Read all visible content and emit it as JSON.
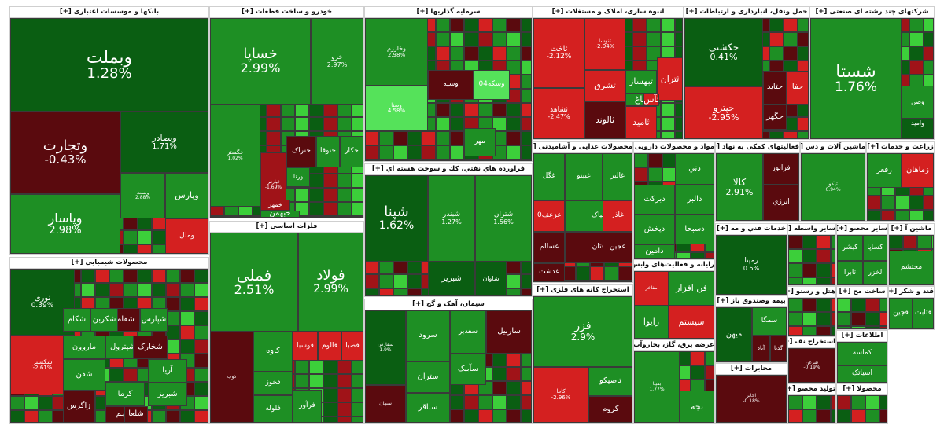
{
  "colors": {
    "deep_red": "#5a0a0e",
    "red": "#d42020",
    "mid_red": "#a01318",
    "dark_green": "#0a5e12",
    "green": "#1e8f24",
    "bright_green": "#3ccf3a",
    "light_green": "#55e25a"
  },
  "chart_data": {
    "type": "heatmap",
    "sectors": [
      {
        "title": "بانکها و موسسات اعتباری [+]",
        "stocks": [
          {
            "symbol": "وبملت",
            "change": "1.28%",
            "color": "dark_green"
          },
          {
            "symbol": "وتجارت",
            "change": "-0.43%",
            "color": "deep_red"
          },
          {
            "symbol": "وبصادر",
            "change": "1.71%",
            "color": "dark_green"
          },
          {
            "symbol": "وپاسار",
            "change": "2.98%",
            "color": "green"
          },
          {
            "symbol": "وپست",
            "change": "2.88%",
            "color": "green"
          },
          {
            "symbol": "وپارس",
            "change": "",
            "color": "green"
          },
          {
            "symbol": "وملل",
            "change": "",
            "color": "red"
          }
        ]
      },
      {
        "title": "خودرو و ساخت قطعات [+]",
        "stocks": [
          {
            "symbol": "خساپا",
            "change": "2.99%",
            "color": "green"
          },
          {
            "symbol": "خرو",
            "change": "2.97%",
            "color": "green"
          },
          {
            "symbol": "خگستر",
            "change": "1.02%",
            "color": "green"
          },
          {
            "symbol": "خپارس",
            "change": "-1.69%",
            "color": "mid_red"
          },
          {
            "symbol": "ختراک",
            "change": "",
            "color": "deep_red"
          },
          {
            "symbol": "ختوقا",
            "change": "",
            "color": "green"
          },
          {
            "symbol": "خکار",
            "change": "",
            "color": "green"
          },
          {
            "symbol": "خبهمن",
            "change": "",
            "color": "green"
          },
          {
            "symbol": "خمهر",
            "change": "",
            "color": "mid_red"
          },
          {
            "symbol": "ورنا",
            "change": "",
            "color": "green"
          }
        ]
      },
      {
        "title": "سرمایه گذاریها [+]",
        "stocks": [
          {
            "symbol": "وخارزم",
            "change": "2.98%",
            "color": "green"
          },
          {
            "symbol": "وصنا",
            "change": "4.58%",
            "color": "light_green"
          },
          {
            "symbol": "وسپه",
            "change": "",
            "color": "deep_red"
          },
          {
            "symbol": "وسکه04",
            "change": "",
            "color": "light_green"
          },
          {
            "symbol": "مهر",
            "change": "",
            "color": "green"
          }
        ]
      },
      {
        "title": "انبوه سازی، املاک و مستغلات [+]",
        "stocks": [
          {
            "symbol": "ثاخت",
            "change": "-2.12%",
            "color": "red"
          },
          {
            "symbol": "ثشاهد",
            "change": "-2.47%",
            "color": "red"
          },
          {
            "symbol": "ثنوسا",
            "change": "-2.94%",
            "color": "red"
          },
          {
            "symbol": "ثبهساز",
            "change": "",
            "color": "green"
          },
          {
            "symbol": "ثشرق",
            "change": "",
            "color": "red"
          },
          {
            "symbol": "ثالوند",
            "change": "",
            "color": "deep_red"
          },
          {
            "symbol": "ثامید",
            "change": "",
            "color": "red"
          },
          {
            "symbol": "ثتران",
            "change": "",
            "color": "red"
          },
          {
            "symbol": "ثباغ",
            "change": "",
            "color": "green"
          },
          {
            "symbol": "ثآس",
            "change": "",
            "color": "red"
          }
        ]
      },
      {
        "title": "حمل ونقل، انبارداری و ارتباطات [+]",
        "stocks": [
          {
            "symbol": "حکشتی",
            "change": "0.41%",
            "color": "dark_green"
          },
          {
            "symbol": "حپترو",
            "change": "-2.95%",
            "color": "red"
          },
          {
            "symbol": "حتاید",
            "change": "",
            "color": "deep_red"
          },
          {
            "symbol": "حگهر",
            "change": "",
            "color": "deep_red"
          },
          {
            "symbol": "حفا",
            "change": "",
            "color": "red"
          }
        ]
      },
      {
        "title": "شرکتهای چند رشته ای صنعتی [+]",
        "stocks": [
          {
            "symbol": "شستا",
            "change": "1.76%",
            "color": "green"
          },
          {
            "symbol": "وامید",
            "change": "",
            "color": "dark_green"
          },
          {
            "symbol": "وصن",
            "change": "",
            "color": "green"
          }
        ]
      },
      {
        "title": "محصولات شیمیایی [+]",
        "stocks": [
          {
            "symbol": "نوری",
            "change": "0.39%",
            "color": "dark_green"
          },
          {
            "symbol": "شکستر",
            "change": "-2.61%",
            "color": "red"
          },
          {
            "symbol": "شپارس",
            "change": "",
            "color": "green"
          },
          {
            "symbol": "شفام",
            "change": "",
            "color": "deep_red"
          },
          {
            "symbol": "شکربن",
            "change": "",
            "color": "green"
          },
          {
            "symbol": "شکام",
            "change": "",
            "color": "green"
          },
          {
            "symbol": "شپترول",
            "change": "",
            "color": "green"
          },
          {
            "symbol": "شخارک",
            "change": "",
            "color": "deep_red"
          },
          {
            "symbol": "ماروون",
            "change": "",
            "color": "green"
          },
          {
            "symbol": "شفن",
            "change": "",
            "color": "green"
          },
          {
            "symbol": "زاگرس",
            "change": "",
            "color": "deep_red"
          },
          {
            "symbol": "آریا",
            "change": "",
            "color": "green"
          },
          {
            "symbol": "کرما",
            "change": "",
            "color": "green"
          },
          {
            "symbol": "جم",
            "change": "",
            "color": "deep_red"
          },
          {
            "symbol": "شلعا",
            "change": "",
            "color": "deep_red"
          },
          {
            "symbol": "شبریز",
            "change": "",
            "color": "green"
          }
        ]
      },
      {
        "title": "فلزات اساسی [+]",
        "stocks": [
          {
            "symbol": "فملی",
            "change": "2.51%",
            "color": "green"
          },
          {
            "symbol": "فولاد",
            "change": "2.99%",
            "color": "green"
          },
          {
            "symbol": "فوسبا",
            "change": "",
            "color": "red"
          },
          {
            "symbol": "فالوم",
            "change": "",
            "color": "red"
          },
          {
            "symbol": "فصبا",
            "change": "",
            "color": "red"
          },
          {
            "symbol": "کاوه",
            "change": "",
            "color": "green"
          },
          {
            "symbol": "فخوز",
            "change": "",
            "color": "green"
          },
          {
            "symbol": "فلوله",
            "change": "",
            "color": "green"
          },
          {
            "symbol": "فرآور",
            "change": "",
            "color": "green"
          },
          {
            "symbol": "ذوب",
            "change": "",
            "color": "deep_red"
          }
        ]
      },
      {
        "title": "فراورده هاي نفتي، كك و سوخت هسته اي [+]",
        "stocks": [
          {
            "symbol": "شپنا",
            "change": "1.62%",
            "color": "dark_green"
          },
          {
            "symbol": "شبندر",
            "change": "1.27%",
            "color": "green"
          },
          {
            "symbol": "شتران",
            "change": "1.56%",
            "color": "green"
          },
          {
            "symbol": "شبریز",
            "change": "",
            "color": "dark_green"
          },
          {
            "symbol": "شاوان",
            "change": "",
            "color": "dark_green"
          }
        ]
      },
      {
        "title": "سیمان، آهک و گچ [+]",
        "stocks": [
          {
            "symbol": "سفارس",
            "change": "1.9%",
            "color": "dark_green"
          },
          {
            "symbol": "سرود",
            "change": "",
            "color": "green"
          },
          {
            "symbol": "سغدیر",
            "change": "",
            "color": "green"
          },
          {
            "symbol": "ستران",
            "change": "",
            "color": "green"
          },
          {
            "symbol": "سباقر",
            "change": "",
            "color": "green"
          },
          {
            "symbol": "سخزر",
            "change": "",
            "color": "green"
          },
          {
            "symbol": "سآبیک",
            "change": "",
            "color": "green"
          },
          {
            "symbol": "سبهان",
            "change": "",
            "color": "deep_red"
          },
          {
            "symbol": "ساربیل",
            "change": "",
            "color": "deep_red"
          }
        ]
      },
      {
        "title": "محصولات غذایی و آشامیدنی [+]",
        "stocks": [
          {
            "symbol": "غگل",
            "change": "",
            "color": "green"
          },
          {
            "symbol": "غبینو",
            "change": "",
            "color": "green"
          },
          {
            "symbol": "غپاک",
            "change": "",
            "color": "green"
          },
          {
            "symbol": "غزعف0",
            "change": "",
            "color": "red"
          },
          {
            "symbol": "غاذر",
            "change": "",
            "color": "red"
          },
          {
            "symbol": "غالبر",
            "change": "",
            "color": "green"
          },
          {
            "symbol": "غسالم",
            "change": "",
            "color": "deep_red"
          },
          {
            "symbol": "غتان",
            "change": "",
            "color": "deep_red"
          },
          {
            "symbol": "غدشت",
            "change": "",
            "color": "deep_red"
          },
          {
            "symbol": "غجين",
            "change": "",
            "color": "deep_red"
          }
        ]
      },
      {
        "title": "استخراج کانه های فلزی [+]",
        "stocks": [
          {
            "symbol": "فزر",
            "change": "2.9%",
            "color": "green"
          },
          {
            "symbol": "کاما",
            "change": "-2.96%",
            "color": "red"
          },
          {
            "symbol": "تاصیکو",
            "change": "",
            "color": "green"
          },
          {
            "symbol": "کروم",
            "change": "",
            "color": "deep_red"
          }
        ]
      },
      {
        "title": "مواد و محصولات دارویی [+]",
        "stocks": [
          {
            "symbol": "دبرکت",
            "change": "",
            "color": "green"
          },
          {
            "symbol": "دالبر",
            "change": "",
            "color": "green"
          },
          {
            "symbol": "دپخش",
            "change": "",
            "color": "green"
          },
          {
            "symbol": "دامین",
            "change": "",
            "color": "green"
          },
          {
            "symbol": "دتي",
            "change": "",
            "color": "green"
          },
          {
            "symbol": "دسبحا",
            "change": "",
            "color": "green"
          }
        ]
      },
      {
        "title": "فعالیتهای کمکی به نهاد [+]",
        "stocks": [
          {
            "symbol": "کالا",
            "change": "2.91%",
            "color": "green"
          },
          {
            "symbol": "فرابور",
            "change": "",
            "color": "deep_red"
          },
          {
            "symbol": "انرژي",
            "change": "",
            "color": "deep_red"
          }
        ]
      },
      {
        "title": "ماشین آلات و دس [+]",
        "stocks": [
          {
            "symbol": "تپکو",
            "change": "0.94%",
            "color": "green"
          }
        ]
      },
      {
        "title": "زراعت و خدمات [+]",
        "stocks": [
          {
            "symbol": "زفعر",
            "change": "",
            "color": "green"
          },
          {
            "symbol": "زماهان",
            "change": "",
            "color": "red"
          }
        ]
      },
      {
        "title": "رایانه و فعالیت‌های وابس [+]",
        "stocks": [
          {
            "symbol": "فن افزار",
            "change": "",
            "color": "green"
          },
          {
            "symbol": "سیستم",
            "change": "",
            "color": "red"
          },
          {
            "symbol": "رایوا",
            "change": "",
            "color": "green"
          },
          {
            "symbol": "مفاخر",
            "change": "",
            "color": "red"
          }
        ]
      },
      {
        "title": "خدمات فني و مه [+]",
        "stocks": [
          {
            "symbol": "رمپنا",
            "change": "0.5%",
            "color": "dark_green"
          }
        ]
      },
      {
        "title": "عرضه برق، گاز، بخاروآب [+]",
        "stocks": [
          {
            "symbol": "بمپنا",
            "change": "1.77%",
            "color": "green"
          },
          {
            "symbol": "بجه",
            "change": "",
            "color": "green"
          }
        ]
      },
      {
        "title": "بیمه وصندوق باز [+]",
        "stocks": [
          {
            "symbol": "میهن",
            "change": "",
            "color": "dark_green"
          },
          {
            "symbol": "سمگا",
            "change": "",
            "color": "green"
          },
          {
            "symbol": "آباد",
            "change": "",
            "color": "deep_red"
          },
          {
            "symbol": "گدنا",
            "change": "",
            "color": "deep_red"
          }
        ]
      },
      {
        "title": "مخابرات [+]",
        "stocks": [
          {
            "symbol": "اخابر",
            "change": "-0.18%",
            "color": "deep_red"
          }
        ]
      },
      {
        "title": "سایر محصو [+]",
        "stocks": [
          {
            "symbol": "کیشر",
            "change": "",
            "color": "green"
          },
          {
            "symbol": "کساپا",
            "change": "",
            "color": "green"
          },
          {
            "symbol": "تابرا",
            "change": "",
            "color": "green"
          },
          {
            "symbol": "لخزر",
            "change": "",
            "color": "green"
          }
        ]
      },
      {
        "title": "قند و شکر [+]",
        "stocks": [
          {
            "symbol": "قچین",
            "change": "",
            "color": "green"
          },
          {
            "symbol": "قثابت",
            "change": "",
            "color": "green"
          }
        ]
      },
      {
        "title": "ماشین آ [+]",
        "stocks": [
          {
            "symbol": "محتشم",
            "change": "",
            "color": "green"
          }
        ]
      },
      {
        "title": "اطلاعات [+]",
        "stocks": [
          {
            "symbol": "کماسه",
            "change": "",
            "color": "green"
          },
          {
            "symbol": "اسیاتک",
            "change": "",
            "color": "green"
          }
        ]
      },
      {
        "title": "محصولا [+]",
        "stocks": []
      },
      {
        "title": "استخراج نف [+]",
        "stocks": [
          {
            "symbol": "شرغن",
            "change": "-0.19%",
            "color": "deep_red"
          }
        ]
      },
      {
        "title": "تولید محصو [+]",
        "stocks": []
      },
      {
        "title": "هتل و رستو [+]",
        "stocks": []
      },
      {
        "title": "ساخت مح [+]",
        "stocks": []
      },
      {
        "title": "سایر واسطه [+]",
        "stocks": []
      }
    ]
  }
}
